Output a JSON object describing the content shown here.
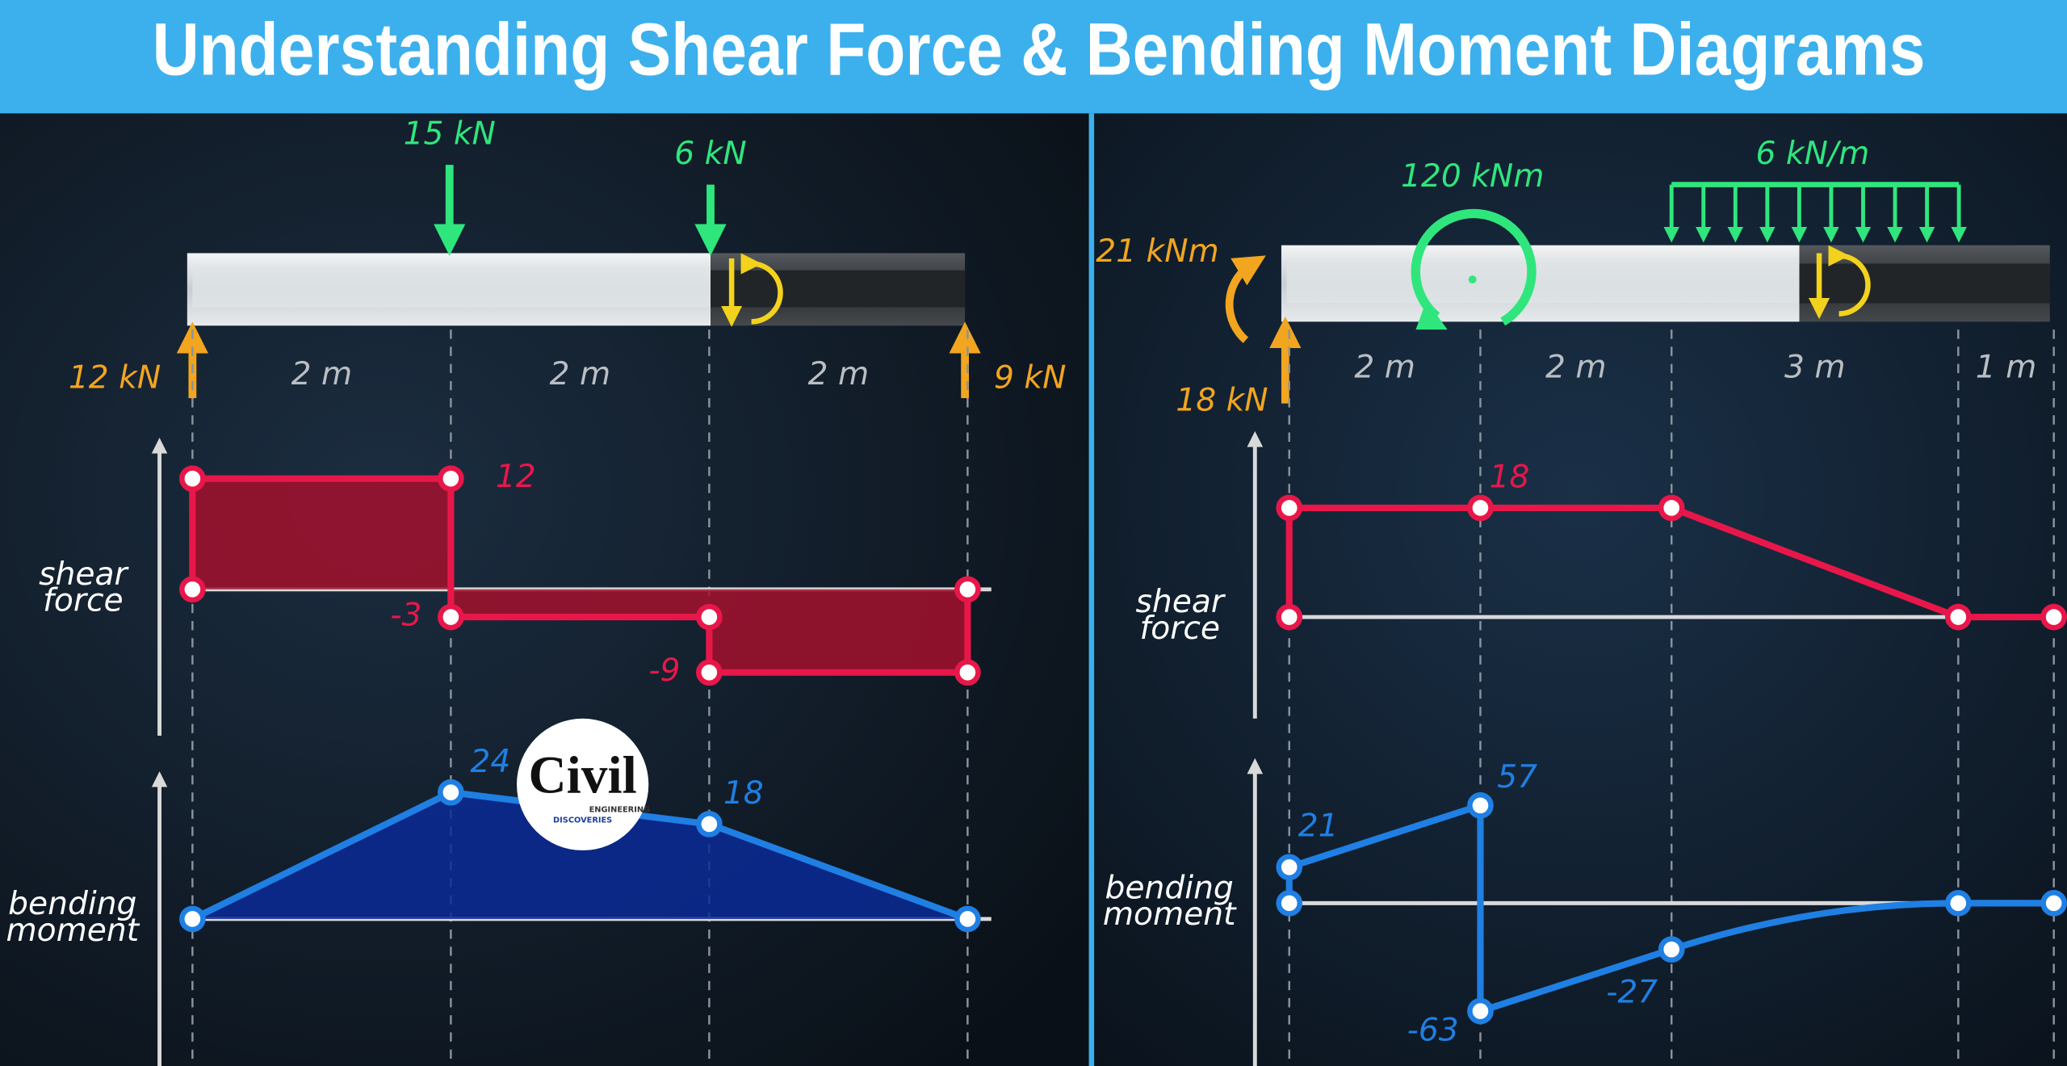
{
  "title": "Understanding Shear Force & Bending Moment Diagrams",
  "logo": {
    "name": "Civil",
    "tagline_1": "ENGINEERING",
    "tagline_2": "DISCOVERIES"
  },
  "panels": [
    {
      "point_loads": [
        "15 kN",
        "6 kN"
      ],
      "reactions": [
        "12 kN",
        "9 kN"
      ],
      "spans": [
        "2 m",
        "2 m",
        "2 m"
      ],
      "shear": {
        "label": [
          "shear",
          "force"
        ],
        "x": [
          0,
          0,
          2,
          2,
          4,
          4,
          6,
          6
        ],
        "values": [
          0,
          12,
          12,
          -3,
          -3,
          -9,
          -9,
          0
        ]
      },
      "moment": {
        "label": [
          "bending",
          "moment"
        ],
        "x": [
          0,
          2,
          4,
          6
        ],
        "values": [
          0,
          24,
          18,
          0
        ]
      }
    },
    {
      "applied_moment": "120 kNm",
      "distributed_load": "6 kN/m",
      "reaction_moment": "21 kNm",
      "reaction": "18 kN",
      "spans": [
        "2 m",
        "2 m",
        "3 m",
        "1 m"
      ],
      "shear": {
        "label": [
          "shear",
          "force"
        ],
        "x": [
          0,
          0,
          2,
          4,
          7,
          8
        ],
        "values": [
          0,
          18,
          18,
          18,
          0,
          0
        ]
      },
      "moment": {
        "label": [
          "bending",
          "moment"
        ],
        "x": [
          0,
          0,
          2,
          2,
          4,
          7,
          8
        ],
        "values": [
          0,
          21,
          57,
          -63,
          -27,
          0,
          0
        ]
      }
    }
  ]
}
